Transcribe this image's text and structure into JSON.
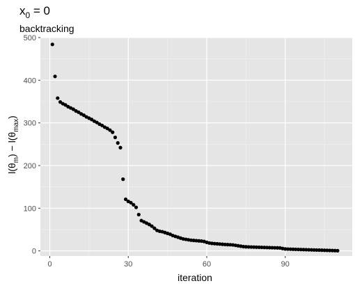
{
  "chart_data": {
    "type": "scatter",
    "title_main": "x",
    "title_sub": "0",
    "title_rest": " = 0",
    "subtitle": "backtracking",
    "xlabel": "iteration",
    "ylabel": {
      "l1": "l(θ",
      "s1": "m",
      "mid": ") − l(θ",
      "s2": "max",
      "end": ")"
    },
    "xlim": [
      -3.6,
      115.6
    ],
    "ylim": [
      -12,
      500
    ],
    "x_ticks": [
      0,
      30,
      60,
      90
    ],
    "x_tick_labels": [
      "0",
      "30",
      "60",
      "90"
    ],
    "y_ticks": [
      0,
      100,
      200,
      300,
      400,
      500
    ],
    "y_tick_labels": [
      "0",
      "100",
      "200",
      "300",
      "400",
      "500"
    ],
    "grid": true,
    "panel_background": "#e5e5e5",
    "point_color": "#000000",
    "points": [
      [
        1,
        484
      ],
      [
        2,
        409
      ],
      [
        3,
        358
      ],
      [
        4,
        349
      ],
      [
        5,
        345
      ],
      [
        6,
        342
      ],
      [
        7,
        338
      ],
      [
        8,
        335
      ],
      [
        9,
        332
      ],
      [
        10,
        328
      ],
      [
        11,
        325
      ],
      [
        12,
        321
      ],
      [
        13,
        318
      ],
      [
        14,
        314
      ],
      [
        15,
        311
      ],
      [
        16,
        308
      ],
      [
        17,
        304
      ],
      [
        18,
        301
      ],
      [
        19,
        297
      ],
      [
        20,
        294
      ],
      [
        21,
        290
      ],
      [
        22,
        287
      ],
      [
        23,
        283
      ],
      [
        24,
        278
      ],
      [
        25,
        266
      ],
      [
        26,
        253
      ],
      [
        27,
        242
      ],
      [
        28,
        168
      ],
      [
        29,
        121
      ],
      [
        30,
        116
      ],
      [
        31,
        113
      ],
      [
        32,
        108
      ],
      [
        33,
        102
      ],
      [
        34,
        85
      ],
      [
        35,
        71
      ],
      [
        36,
        68
      ],
      [
        37,
        65
      ],
      [
        38,
        62
      ],
      [
        39,
        58
      ],
      [
        40,
        53
      ],
      [
        41,
        48
      ],
      [
        42,
        46
      ],
      [
        43,
        45
      ],
      [
        44,
        43
      ],
      [
        45,
        41
      ],
      [
        46,
        39
      ],
      [
        47,
        36
      ],
      [
        48,
        34
      ],
      [
        49,
        32
      ],
      [
        50,
        30
      ],
      [
        51,
        28
      ],
      [
        52,
        27
      ],
      [
        53,
        26
      ],
      [
        54,
        25
      ],
      [
        55,
        24.5
      ],
      [
        56,
        24
      ],
      [
        57,
        23.5
      ],
      [
        58,
        23
      ],
      [
        59,
        22
      ],
      [
        60,
        20
      ],
      [
        61,
        18.5
      ],
      [
        62,
        17.5
      ],
      [
        63,
        17
      ],
      [
        64,
        16.5
      ],
      [
        65,
        16
      ],
      [
        66,
        15.5
      ],
      [
        67,
        15
      ],
      [
        68,
        14.7
      ],
      [
        69,
        14.4
      ],
      [
        70,
        14
      ],
      [
        71,
        13
      ],
      [
        72,
        12
      ],
      [
        73,
        11
      ],
      [
        74,
        10
      ],
      [
        75,
        9.6
      ],
      [
        76,
        9.3
      ],
      [
        77,
        9.1
      ],
      [
        78,
        8.9
      ],
      [
        79,
        8.7
      ],
      [
        80,
        8.5
      ],
      [
        81,
        8.3
      ],
      [
        82,
        8.1
      ],
      [
        83,
        7.9
      ],
      [
        84,
        7.7
      ],
      [
        85,
        7.5
      ],
      [
        86,
        7.3
      ],
      [
        87,
        7.1
      ],
      [
        88,
        6.9
      ],
      [
        89,
        5.5
      ],
      [
        90,
        4.5
      ],
      [
        91,
        4.2
      ],
      [
        92,
        4.0
      ],
      [
        93,
        3.8
      ],
      [
        94,
        3.6
      ],
      [
        95,
        3.4
      ],
      [
        96,
        3.2
      ],
      [
        97,
        3.0
      ],
      [
        98,
        2.8
      ],
      [
        99,
        2.6
      ],
      [
        100,
        2.4
      ],
      [
        101,
        2.2
      ],
      [
        102,
        2.0
      ],
      [
        103,
        1.8
      ],
      [
        104,
        1.6
      ],
      [
        105,
        1.4
      ],
      [
        106,
        1.2
      ],
      [
        107,
        1.0
      ],
      [
        108,
        0.8
      ],
      [
        109,
        0.6
      ],
      [
        110,
        0.4
      ]
    ]
  }
}
